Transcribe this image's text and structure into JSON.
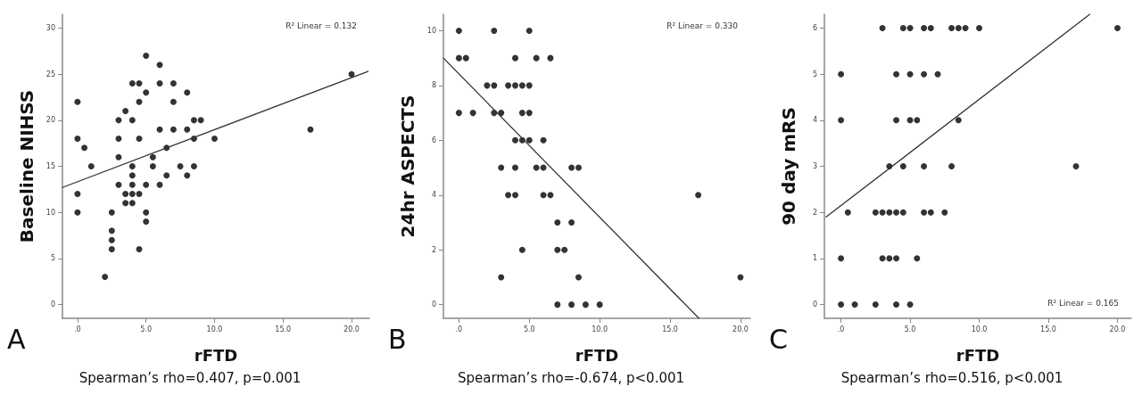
{
  "chart_data": [
    {
      "type": "scatter",
      "xlabel": "rFTD",
      "ylabel": "Baseline NIHSS",
      "subtitle": "Spearman’s rho=0.407, p=0.001",
      "annotations": [
        "A",
        "R² Linear = 0.132"
      ],
      "marker": "circle",
      "grid": false,
      "xlim": [
        -1.1,
        21.3
      ],
      "xticks": [
        {
          "value": 0,
          "label": ".0"
        },
        {
          "value": 5,
          "label": "5.0"
        },
        {
          "value": 10,
          "label": "10.0"
        },
        {
          "value": 15,
          "label": "15.0"
        },
        {
          "value": 20,
          "label": "20.0"
        }
      ],
      "ylim": [
        -1.5,
        31.5
      ],
      "yticks": [
        0,
        5,
        10,
        15,
        20,
        25,
        30
      ],
      "series": [
        {
          "color": "#000000",
          "x": [
            0,
            0,
            0,
            0,
            0.5,
            1,
            2,
            2.5,
            2.5,
            2.5,
            2.5,
            3,
            3,
            3,
            3,
            3.5,
            3.5,
            3.5,
            4,
            4,
            4,
            4,
            4,
            4,
            4,
            4.5,
            4.5,
            4.5,
            4.5,
            4.5,
            5,
            5,
            5,
            5,
            5,
            5.5,
            5.5,
            6,
            6,
            6,
            6,
            6.5,
            6.5,
            7,
            7,
            7,
            7.5,
            8,
            8,
            8,
            8.5,
            8.5,
            8.5,
            9,
            10,
            17,
            20
          ],
          "values": [
            22,
            18,
            12,
            10,
            17,
            15,
            3,
            10,
            8,
            7,
            6,
            20,
            18,
            16,
            13,
            21,
            12,
            11,
            24,
            20,
            15,
            14,
            13,
            12,
            11,
            24,
            22,
            18,
            12,
            6,
            27,
            23,
            13,
            10,
            9,
            16,
            15,
            26,
            24,
            19,
            13,
            17,
            14,
            24,
            22,
            19,
            15,
            23,
            19,
            14,
            20,
            18,
            15,
            20,
            18,
            19,
            25
          ]
        },
        {
          "type": "line",
          "marker": "none",
          "color": "#333333",
          "x": [
            -1.1,
            21.2
          ],
          "values": [
            12.7,
            25.3
          ]
        }
      ]
    },
    {
      "type": "scatter",
      "xlabel": "rFTD",
      "ylabel": "24hr ASPECTS",
      "subtitle": "Spearman’s rho=-0.674, p<0.001",
      "annotations": [
        "B",
        "R² Linear = 0.330"
      ],
      "marker": "circle",
      "grid": false,
      "xlim": [
        -1.1,
        20.7
      ],
      "xticks": [
        {
          "value": 0,
          "label": ".0"
        },
        {
          "value": 5,
          "label": "5.0"
        },
        {
          "value": 10,
          "label": "10.0"
        },
        {
          "value": 15,
          "label": "15.0"
        },
        {
          "value": 20,
          "label": "20.0"
        }
      ],
      "ylim": [
        -0.5,
        10.6
      ],
      "yticks": [
        0,
        2,
        4,
        6,
        8,
        10
      ],
      "series": [
        {
          "color": "#000000",
          "x": [
            0,
            2.5,
            5,
            0,
            0.5,
            4,
            5.5,
            6.5,
            2,
            2.5,
            3.5,
            4,
            4.5,
            5,
            0,
            1,
            2.5,
            3,
            4.5,
            5,
            4,
            4.5,
            5,
            6,
            3,
            4,
            5.5,
            6,
            8,
            8.5,
            3.5,
            4,
            6,
            6.5,
            17,
            7,
            8,
            4.5,
            7,
            7.5,
            3,
            8.5,
            20,
            7,
            8,
            9,
            10
          ],
          "values": [
            10,
            10,
            10,
            9,
            9,
            9,
            9,
            9,
            8,
            8,
            8,
            8,
            8,
            8,
            7,
            7,
            7,
            7,
            7,
            7,
            6,
            6,
            6,
            6,
            5,
            5,
            5,
            5,
            5,
            5,
            4,
            4,
            4,
            4,
            4,
            3,
            3,
            2,
            2,
            2,
            1,
            1,
            1,
            0,
            0,
            0,
            0
          ]
        },
        {
          "type": "line",
          "marker": "none",
          "color": "#333333",
          "x": [
            -1.1,
            17.05
          ],
          "values": [
            9.0,
            -0.5
          ]
        }
      ]
    },
    {
      "type": "scatter",
      "xlabel": "rFTD",
      "ylabel": "90 day mRS",
      "subtitle": "Spearman’s rho=0.516, p<0.001",
      "annotations": [
        "C",
        "R² Linear = 0.165"
      ],
      "marker": "circle",
      "grid": false,
      "xlim": [
        -1.2,
        21
      ],
      "xticks": [
        {
          "value": 0,
          "label": ".0"
        },
        {
          "value": 5,
          "label": "5.0"
        },
        {
          "value": 10,
          "label": "10.0"
        },
        {
          "value": 15,
          "label": "15.0"
        },
        {
          "value": 20,
          "label": "20.0"
        }
      ],
      "ylim": [
        -0.3,
        6.3
      ],
      "yticks": [
        0,
        1,
        2,
        3,
        4,
        5,
        6
      ],
      "series": [
        {
          "color": "#000000",
          "x": [
            3,
            4.5,
            5,
            6,
            6.5,
            8,
            8.5,
            9,
            10,
            20,
            0,
            4,
            5,
            6,
            7,
            0,
            4,
            5,
            5.5,
            8.5,
            3.5,
            4.5,
            6,
            8,
            17,
            0.5,
            2.5,
            3,
            3.5,
            4,
            4.5,
            6,
            6.5,
            7.5,
            0,
            3,
            3.5,
            4,
            5.5,
            0,
            1,
            2.5,
            4,
            5
          ],
          "values": [
            6,
            6,
            6,
            6,
            6,
            6,
            6,
            6,
            6,
            6,
            5,
            5,
            5,
            5,
            5,
            4,
            4,
            4,
            4,
            4,
            3,
            3,
            3,
            3,
            3,
            2,
            2,
            2,
            2,
            2,
            2,
            2,
            2,
            2,
            1,
            1,
            1,
            1,
            1,
            0,
            0,
            0,
            0,
            0
          ]
        },
        {
          "type": "line",
          "marker": "none",
          "color": "#333333",
          "x": [
            -1.07,
            18.0
          ],
          "values": [
            1.9,
            6.3
          ]
        }
      ]
    }
  ]
}
